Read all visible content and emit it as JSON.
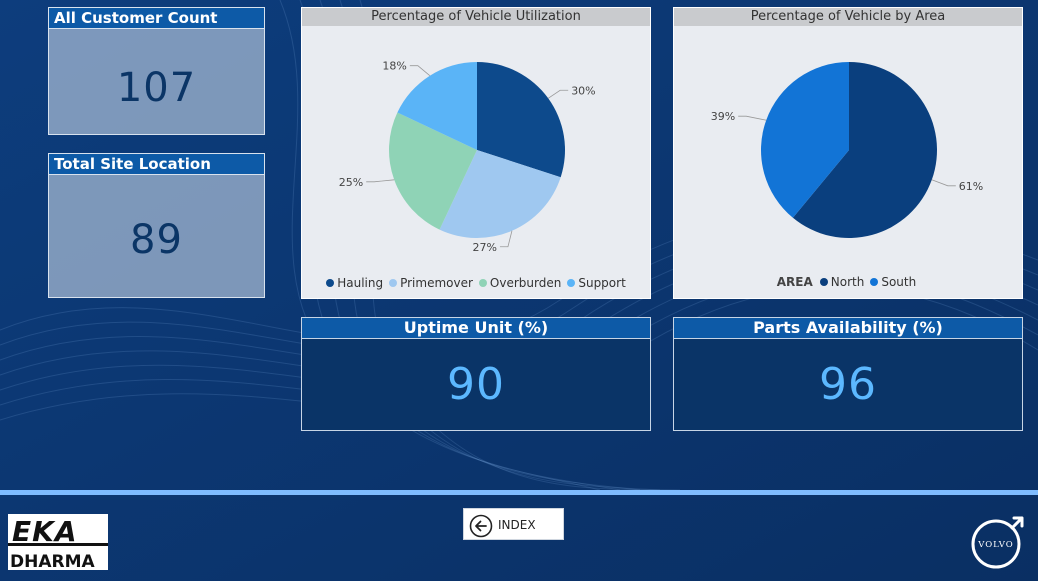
{
  "kpis": {
    "customer_count": {
      "label": "All Customer Count",
      "value": "107"
    },
    "site_location": {
      "label": "Total Site Location",
      "value": "89"
    },
    "uptime": {
      "label": "Uptime Unit (%)",
      "value": "90"
    },
    "parts": {
      "label": "Parts Availability (%)",
      "value": "96"
    }
  },
  "chart_data": [
    {
      "type": "pie",
      "title": "Percentage of Vehicle Utilization",
      "categories": [
        "Hauling",
        "Primemover",
        "Overburden",
        "Support"
      ],
      "values": [
        30,
        27,
        25,
        18
      ],
      "labels": [
        "30%",
        "27%",
        "25%",
        "18%"
      ],
      "colors": [
        "#0d4a8c",
        "#9fc8f0",
        "#8fd3b6",
        "#5ab4f7"
      ],
      "legend": "bottom"
    },
    {
      "type": "pie",
      "title": "Percentage of Vehicle by Area",
      "legend_title": "AREA",
      "categories": [
        "North",
        "South"
      ],
      "values": [
        61,
        39
      ],
      "labels": [
        "61%",
        "39%"
      ],
      "colors": [
        "#0a3f7e",
        "#1274d6"
      ],
      "legend": "bottom"
    }
  ],
  "nav": {
    "index_label": "INDEX"
  },
  "logos": {
    "eka_line1": "EKA",
    "eka_line2": "DHARMA",
    "volvo": "VOLVO"
  }
}
